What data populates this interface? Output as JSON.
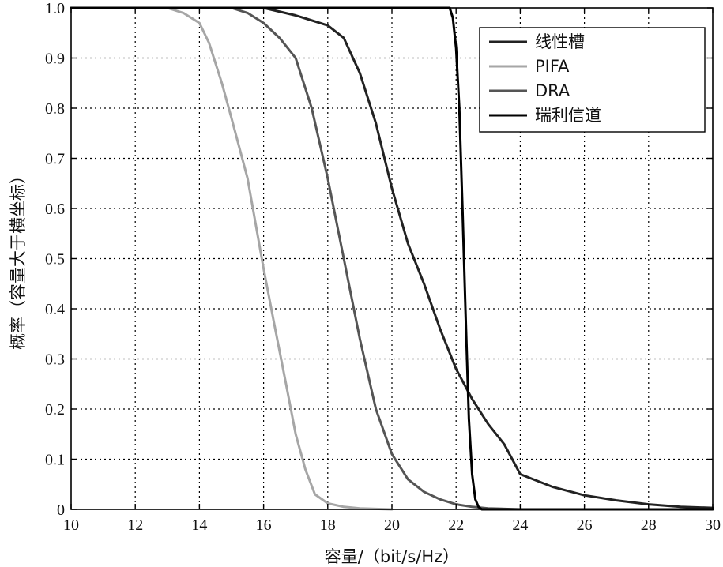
{
  "chart_data": {
    "type": "line",
    "xlabel": "容量/（bit/s/Hz）",
    "ylabel": "概率（容量大于横坐标）",
    "xlim": [
      10,
      30
    ],
    "ylim": [
      0,
      1
    ],
    "xticks": [
      10,
      12,
      14,
      16,
      18,
      20,
      22,
      24,
      26,
      28,
      30
    ],
    "yticks": [
      0,
      0.1,
      0.2,
      0.3,
      0.4,
      0.5,
      0.6,
      0.7,
      0.8,
      0.9,
      1.0
    ],
    "ytick_labels": [
      "0",
      "0.1",
      "0.2",
      "0.3",
      "0.4",
      "0.5",
      "0.6",
      "0.7",
      "0.8",
      "0.9",
      "1.0"
    ],
    "grid": true,
    "legend_position": "top-right",
    "series": [
      {
        "name": "线性槽",
        "color": "#222222",
        "x": [
          12.0,
          14.0,
          16.0,
          17.0,
          18.0,
          18.5,
          19.0,
          19.5,
          20.0,
          20.5,
          21.0,
          21.5,
          22.0,
          22.5,
          23.0,
          23.5,
          24.0,
          25.0,
          26.0,
          27.0,
          28.0,
          29.0,
          30.0
        ],
        "y": [
          1.0,
          1.0,
          1.0,
          0.985,
          0.965,
          0.94,
          0.87,
          0.77,
          0.64,
          0.53,
          0.45,
          0.36,
          0.28,
          0.22,
          0.17,
          0.13,
          0.07,
          0.045,
          0.028,
          0.018,
          0.01,
          0.005,
          0.003
        ]
      },
      {
        "name": "PIFA",
        "color": "#a6a6a6",
        "x": [
          10.0,
          12.0,
          13.0,
          13.5,
          14.0,
          14.3,
          14.7,
          15.0,
          15.5,
          16.0,
          16.3,
          16.7,
          17.0,
          17.3,
          17.6,
          18.0,
          18.5,
          19.0,
          19.5,
          20.0
        ],
        "y": [
          1.0,
          1.0,
          1.0,
          0.99,
          0.97,
          0.93,
          0.85,
          0.78,
          0.66,
          0.48,
          0.38,
          0.25,
          0.15,
          0.08,
          0.03,
          0.012,
          0.005,
          0.002,
          0.001,
          0.0
        ]
      },
      {
        "name": "DRA",
        "color": "#555555",
        "x": [
          10.0,
          14.0,
          15.0,
          15.5,
          16.0,
          16.5,
          17.0,
          17.5,
          18.0,
          18.5,
          19.0,
          19.5,
          20.0,
          20.5,
          21.0,
          21.5,
          22.0,
          22.5,
          23.0,
          24.0
        ],
        "y": [
          1.0,
          1.0,
          1.0,
          0.99,
          0.97,
          0.94,
          0.9,
          0.8,
          0.66,
          0.5,
          0.34,
          0.2,
          0.11,
          0.06,
          0.035,
          0.02,
          0.01,
          0.005,
          0.002,
          0.0
        ]
      },
      {
        "name": "瑞利信道",
        "color": "#000000",
        "x": [
          10.0,
          21.5,
          21.8,
          21.9,
          22.0,
          22.1,
          22.2,
          22.3,
          22.4,
          22.5,
          22.6,
          22.7,
          22.8,
          23.0,
          30.0
        ],
        "y": [
          1.0,
          1.0,
          1.0,
          0.98,
          0.92,
          0.8,
          0.6,
          0.38,
          0.18,
          0.07,
          0.02,
          0.005,
          0.0,
          0.0,
          0.0
        ]
      }
    ]
  }
}
